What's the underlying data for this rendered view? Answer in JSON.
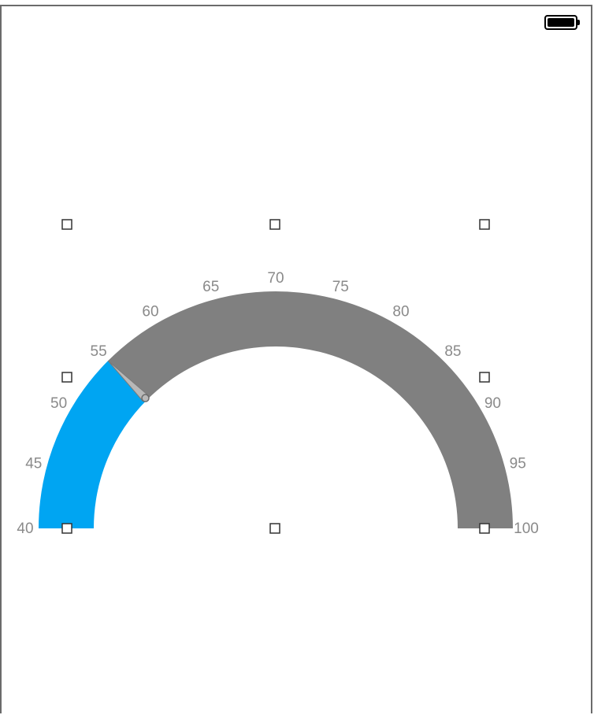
{
  "status_bar": {
    "battery_level": 1.0,
    "battery_icon": "battery-icon"
  },
  "gauge": {
    "type": "semicircular-gauge",
    "min": 40,
    "max": 100,
    "value": 55,
    "needle_icon": "needle-icon",
    "colors": {
      "filled": "#00a5f2",
      "track": "#808080",
      "needle": "#b8b8b8",
      "labels": "#8a8a8a"
    },
    "tick_labels": [
      "40",
      "45",
      "50",
      "55",
      "60",
      "65",
      "70",
      "75",
      "80",
      "85",
      "90",
      "95",
      "100"
    ]
  },
  "selection_handles": {
    "count": 8,
    "icon": "resize-handle-icon"
  }
}
